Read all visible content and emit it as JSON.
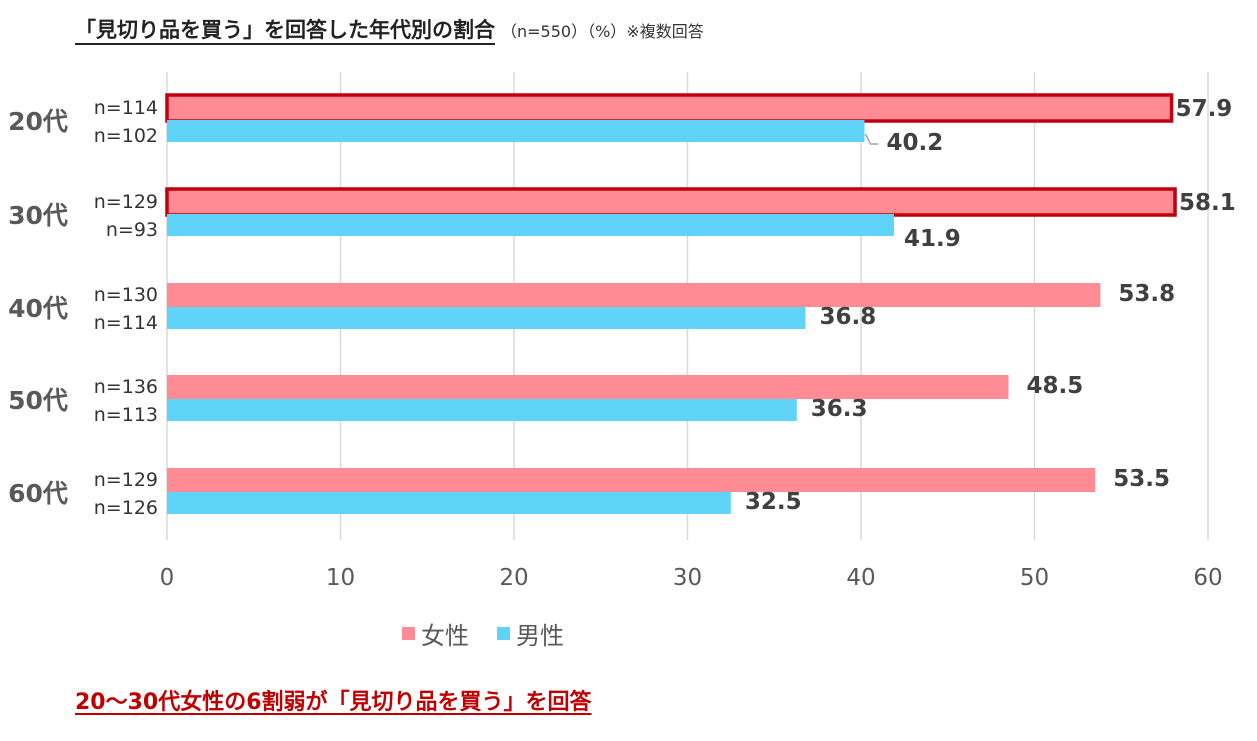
{
  "title": {
    "main": "「見切り品を買う」を回答した年代別の割合",
    "sub": "（n=550）（%）※複数回答"
  },
  "conclusion": "20～30代女性の6割弱が「見切り品を買う」を回答",
  "colors": {
    "female": "#ff8c94",
    "male": "#5fd4f8",
    "highlight": "#c0000f",
    "grid": "#d9d9d9",
    "text": "#404040"
  },
  "chart_data": {
    "type": "bar",
    "orientation": "horizontal",
    "categories": [
      "20代",
      "30代",
      "40代",
      "50代",
      "60代"
    ],
    "series": [
      {
        "name": "女性",
        "values": [
          57.9,
          58.1,
          53.8,
          48.5,
          53.5
        ],
        "n": [
          "n=114",
          "n=129",
          "n=130",
          "n=136",
          "n=129"
        ]
      },
      {
        "name": "男性",
        "values": [
          40.2,
          41.9,
          36.8,
          36.3,
          32.5
        ],
        "n": [
          "n=102",
          "n=93",
          "n=114",
          "n=113",
          "n=126"
        ]
      }
    ],
    "xlim": [
      0,
      60
    ],
    "xticks": [
      0,
      10,
      20,
      30,
      40,
      50,
      60
    ],
    "highlighted": [
      "20代 女性",
      "30代 女性"
    ],
    "grid": true,
    "legend_position": "bottom"
  }
}
